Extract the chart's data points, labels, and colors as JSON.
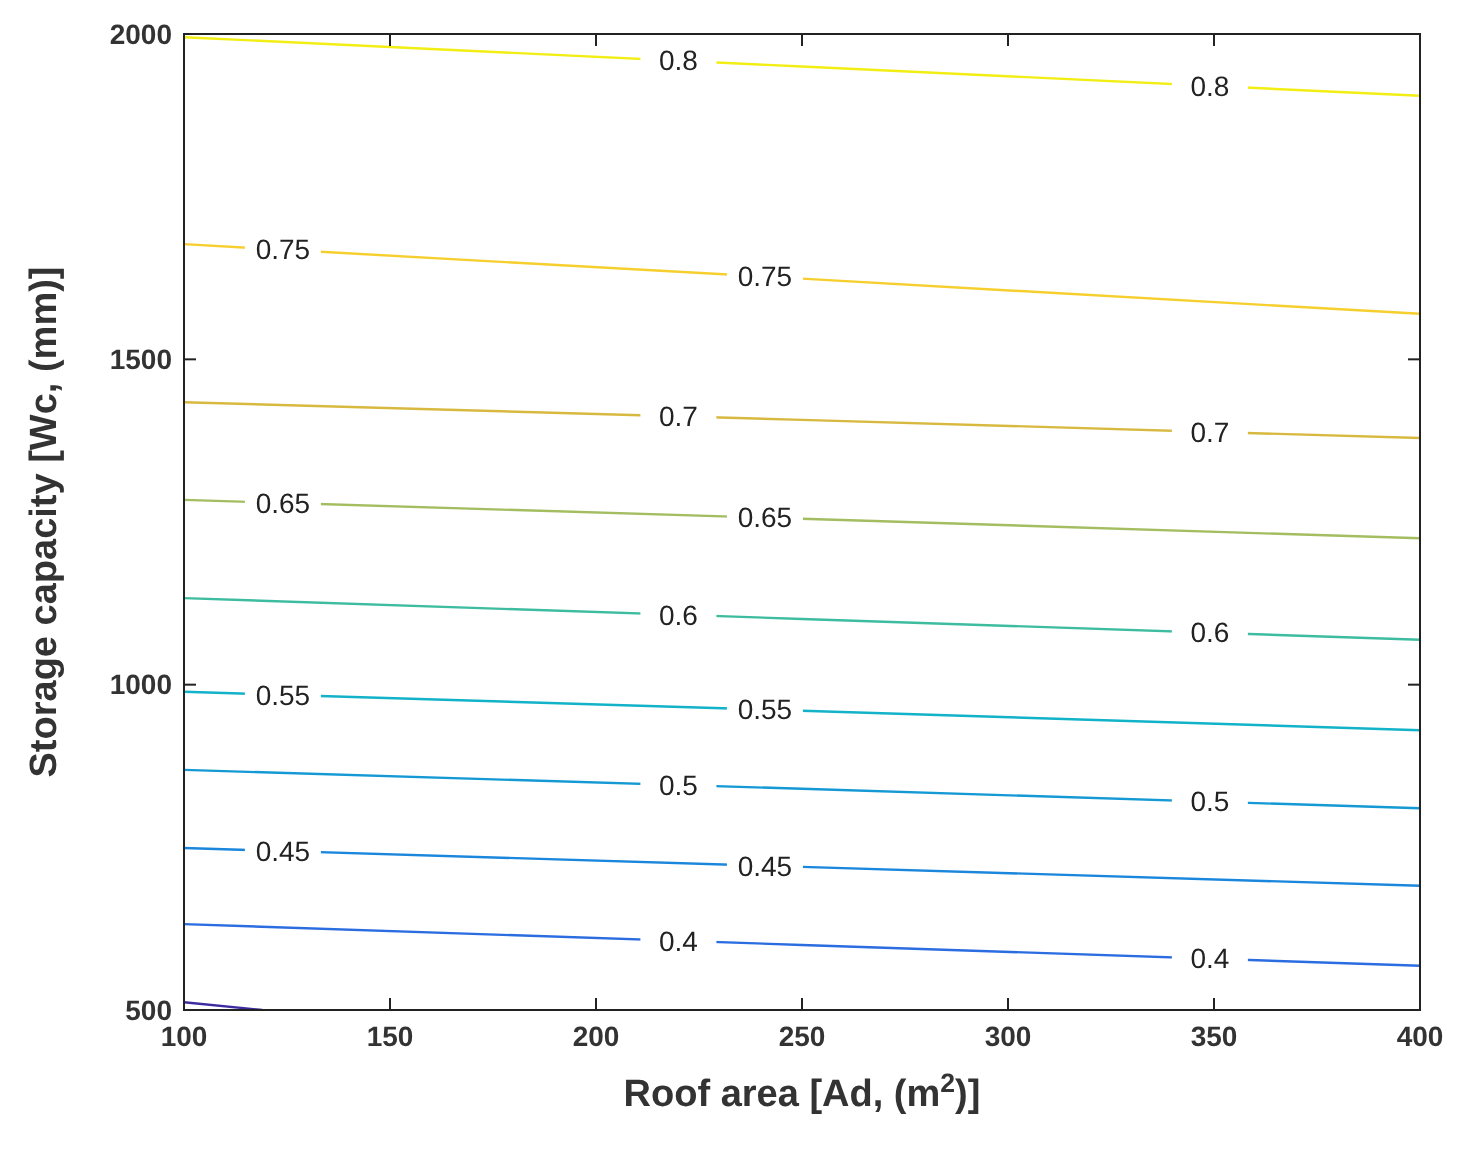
{
  "chart_data": {
    "type": "line",
    "xlabel": "Roof area [Ad, (m$^{2}$)]",
    "ylabel": "Storage capacity [Wc, (mm)]",
    "xlim": [
      100,
      400
    ],
    "ylim": [
      500,
      2000
    ],
    "xticks": [
      100,
      150,
      200,
      250,
      300,
      350,
      400
    ],
    "yticks": [
      500,
      1000,
      1500,
      2000
    ],
    "grid": false,
    "marker": "none",
    "line_style": "solid",
    "series": [
      {
        "color": "#3d2ca0",
        "x": [
          100,
          119
        ],
        "values": [
          512,
          500
        ]
      },
      {
        "name": "0.4",
        "color": "#2b6de0",
        "x": [
          100,
          250,
          400
        ],
        "values": [
          632,
          600,
          568
        ]
      },
      {
        "name": "0.45",
        "color": "#1a86dc",
        "x": [
          100,
          250,
          400
        ],
        "values": [
          749,
          720,
          691
        ]
      },
      {
        "name": "0.5",
        "color": "#1499d4",
        "x": [
          100,
          250,
          400
        ],
        "values": [
          869,
          840,
          810
        ]
      },
      {
        "name": "0.55",
        "color": "#12b2c8",
        "x": [
          100,
          250,
          400
        ],
        "values": [
          989,
          960,
          930
        ]
      },
      {
        "name": "0.6",
        "color": "#3dbca0",
        "x": [
          100,
          250,
          400
        ],
        "values": [
          1133,
          1101,
          1069
        ]
      },
      {
        "name": "0.65",
        "color": "#a3bd60",
        "x": [
          100,
          250,
          400
        ],
        "values": [
          1284,
          1255,
          1225
        ]
      },
      {
        "name": "0.7",
        "color": "#d8b940",
        "x": [
          100,
          250,
          400
        ],
        "values": [
          1434,
          1407,
          1379
        ]
      },
      {
        "name": "0.75",
        "color": "#f6cf2e",
        "x": [
          100,
          250,
          400
        ],
        "values": [
          1677,
          1624,
          1570
        ]
      },
      {
        "name": "0.8",
        "color": "#f2ee14",
        "x": [
          100,
          250,
          400
        ],
        "values": [
          1995,
          1950,
          1905
        ]
      }
    ]
  }
}
